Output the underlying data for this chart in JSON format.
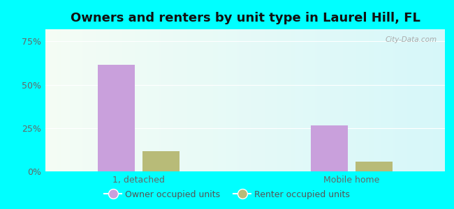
{
  "title": "Owners and renters by unit type in Laurel Hill, FL",
  "categories": [
    "1, detached",
    "Mobile home"
  ],
  "owner_values": [
    0.615,
    0.265
  ],
  "renter_values": [
    0.115,
    0.058
  ],
  "owner_color": "#c9a0dc",
  "renter_color": "#b8bb78",
  "yticks": [
    0,
    0.25,
    0.5,
    0.75
  ],
  "ytick_labels": [
    "0%",
    "25%",
    "50%",
    "75%"
  ],
  "ylim": [
    0,
    0.82
  ],
  "background_outer": "#00ffff",
  "bar_width": 0.28,
  "group_positions": [
    1.0,
    2.6
  ],
  "xlim": [
    0.3,
    3.3
  ],
  "watermark": "City-Data.com",
  "legend_owner": "Owner occupied units",
  "legend_renter": "Renter occupied units",
  "title_fontsize": 13,
  "tick_fontsize": 9,
  "legend_fontsize": 9
}
